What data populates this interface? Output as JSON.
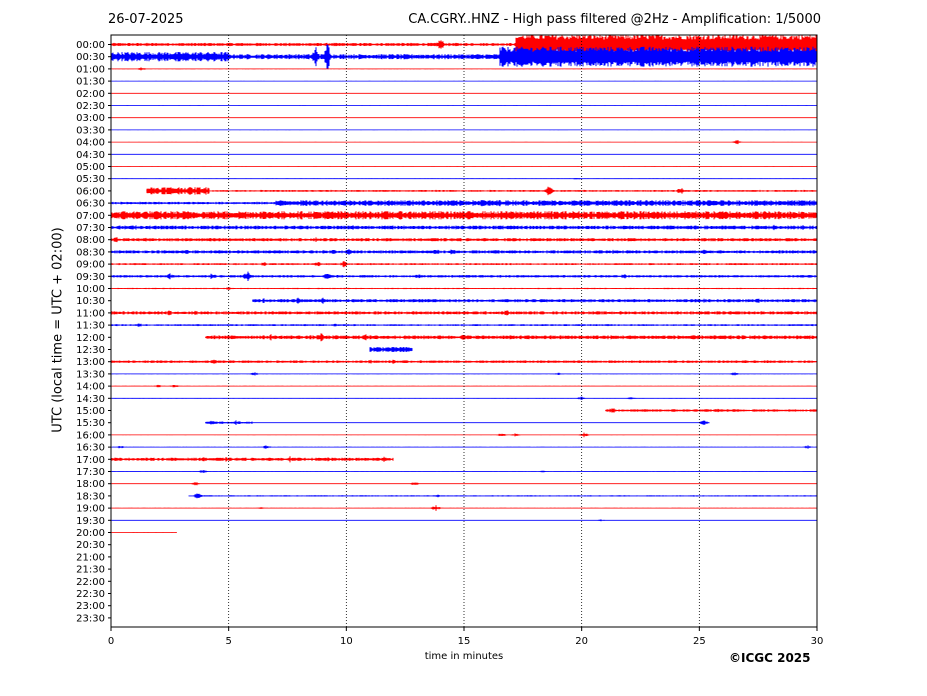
{
  "header": {
    "date": "26-07-2025",
    "title": "CA.CGRY..HNZ - High pass filtered @2Hz - Amplification: 1/5000"
  },
  "footer": {
    "credit": "©ICGC 2025"
  },
  "colors": {
    "trace_red": "#ff0000",
    "trace_blue": "#0000ff",
    "grid": "#000000",
    "background": "#ffffff"
  },
  "chart_data": {
    "type": "line",
    "title": "CA.CGRY..HNZ - High pass filtered @2Hz - Amplification: 1/5000",
    "xlabel": "time in minutes",
    "ylabel": "UTC (local time = UTC + 02:00)",
    "xlim": [
      0,
      30
    ],
    "xticks": [
      "0",
      "5",
      "10",
      "15",
      "20",
      "25",
      "30"
    ],
    "grid": "vertical dotted lines at 5-minute intervals",
    "rows": [
      {
        "label": "00:00",
        "color": "red",
        "activity": [
          [
            0.0,
            17.2,
            0.5
          ],
          [
            17.2,
            30,
            2.5
          ]
        ],
        "events": [
          [
            14.0,
            1.8
          ],
          [
            18.6,
            2.0
          ],
          [
            20.0,
            3.2
          ],
          [
            21.3,
            2.0
          ],
          [
            25.7,
            2.5
          ]
        ]
      },
      {
        "label": "00:30",
        "color": "blue",
        "activity": [
          [
            0.0,
            5.0,
            1.5
          ],
          [
            5.0,
            16.5,
            0.8
          ],
          [
            16.5,
            30,
            2.5
          ]
        ],
        "events": [
          [
            8.7,
            2.8
          ],
          [
            9.2,
            3.5
          ],
          [
            17.7,
            2.0
          ],
          [
            18.9,
            3.0
          ],
          [
            22.4,
            2.5
          ],
          [
            25.7,
            3.0
          ],
          [
            27.9,
            1.6
          ]
        ]
      },
      {
        "label": "01:00",
        "color": "red",
        "activity": [
          [
            0,
            30,
            0.1
          ]
        ],
        "events": [
          [
            1.3,
            0.6
          ]
        ]
      },
      {
        "label": "01:30",
        "color": "blue",
        "activity": [
          [
            0,
            30,
            0.05
          ]
        ],
        "events": []
      },
      {
        "label": "02:00",
        "color": "red",
        "activity": [
          [
            0,
            30,
            0.05
          ]
        ],
        "events": []
      },
      {
        "label": "02:30",
        "color": "blue",
        "activity": [
          [
            0,
            30,
            0.05
          ]
        ],
        "events": []
      },
      {
        "label": "03:00",
        "color": "red",
        "activity": [
          [
            0,
            30,
            0.05
          ]
        ],
        "events": []
      },
      {
        "label": "03:30",
        "color": "blue",
        "activity": [
          [
            0,
            30,
            0.05
          ]
        ],
        "events": []
      },
      {
        "label": "04:00",
        "color": "red",
        "activity": [
          [
            0,
            30,
            0.05
          ]
        ],
        "events": [
          [
            26.6,
            0.8
          ]
        ]
      },
      {
        "label": "04:30",
        "color": "blue",
        "activity": [
          [
            0,
            30,
            0.05
          ]
        ],
        "events": []
      },
      {
        "label": "05:00",
        "color": "red",
        "activity": [
          [
            0,
            30,
            0.05
          ]
        ],
        "events": []
      },
      {
        "label": "05:30",
        "color": "blue",
        "activity": [
          [
            0,
            30,
            0.1
          ]
        ],
        "events": [
          [
            19.8,
            0.4
          ]
        ]
      },
      {
        "label": "06:00",
        "color": "red",
        "activity": [
          [
            1.5,
            4.2,
            1.2
          ],
          [
            4.2,
            30,
            0.3
          ]
        ],
        "events": [
          [
            2.8,
            1.0
          ],
          [
            3.8,
            1.0
          ],
          [
            18.6,
            1.5
          ],
          [
            24.2,
            1.2
          ]
        ]
      },
      {
        "label": "06:30",
        "color": "blue",
        "activity": [
          [
            0,
            7,
            0.4
          ],
          [
            7,
            30,
            0.9
          ]
        ],
        "events": [
          [
            12.4,
            1.0
          ],
          [
            15.8,
            1.3
          ],
          [
            16.5,
            1.2
          ],
          [
            29.4,
            0.6
          ]
        ]
      },
      {
        "label": "07:00",
        "color": "red",
        "activity": [
          [
            0,
            30,
            1.3
          ]
        ],
        "events": [
          [
            1.5,
            1.0
          ],
          [
            2.9,
            1.0
          ],
          [
            7.8,
            1.2
          ],
          [
            15.6,
            1.3
          ],
          [
            21.2,
            1.0
          ],
          [
            27.0,
            1.2
          ]
        ]
      },
      {
        "label": "07:30",
        "color": "blue",
        "activity": [
          [
            0,
            30,
            0.6
          ]
        ],
        "events": [
          [
            1.0,
            1.0
          ],
          [
            10.3,
            0.8
          ],
          [
            28.2,
            1.0
          ],
          [
            29.4,
            1.0
          ]
        ]
      },
      {
        "label": "08:00",
        "color": "red",
        "activity": [
          [
            0,
            30,
            0.5
          ]
        ],
        "events": [
          [
            0.2,
            1.0
          ],
          [
            1.5,
            0.8
          ],
          [
            8.7,
            0.8
          ]
        ]
      },
      {
        "label": "08:30",
        "color": "blue",
        "activity": [
          [
            0,
            30,
            0.5
          ]
        ],
        "events": [
          [
            3.2,
            1.0
          ],
          [
            7.2,
            0.8
          ],
          [
            9.5,
            1.0
          ],
          [
            10.1,
            1.0
          ],
          [
            13.8,
            1.0
          ],
          [
            14.5,
            1.0
          ],
          [
            21.4,
            1.0
          ],
          [
            25.2,
            0.8
          ]
        ]
      },
      {
        "label": "09:00",
        "color": "red",
        "activity": [
          [
            0,
            30,
            0.3
          ]
        ],
        "events": [
          [
            6.5,
            0.8
          ],
          [
            8.8,
            0.8
          ],
          [
            9.9,
            1.0
          ]
        ]
      },
      {
        "label": "09:30",
        "color": "blue",
        "activity": [
          [
            0,
            30,
            0.4
          ]
        ],
        "events": [
          [
            2.5,
            1.0
          ],
          [
            4.3,
            1.2
          ],
          [
            5.8,
            1.6
          ],
          [
            9.2,
            1.2
          ],
          [
            13.1,
            1.0
          ],
          [
            21.8,
            0.8
          ]
        ]
      },
      {
        "label": "10:00",
        "color": "red",
        "activity": [
          [
            0,
            30,
            0.2
          ]
        ],
        "events": [
          [
            5.0,
            0.6
          ]
        ]
      },
      {
        "label": "10:30",
        "color": "blue",
        "activity": [
          [
            6,
            30,
            0.5
          ]
        ],
        "events": [
          [
            6.5,
            0.8
          ],
          [
            8.0,
            1.2
          ],
          [
            9.0,
            1.0
          ],
          [
            25.2,
            0.8
          ],
          [
            27.5,
            0.8
          ]
        ]
      },
      {
        "label": "11:00",
        "color": "red",
        "activity": [
          [
            0,
            30,
            0.5
          ]
        ],
        "events": [
          [
            2.5,
            1.0
          ],
          [
            3.6,
            0.8
          ],
          [
            16.8,
            1.0
          ],
          [
            14.1,
            0.7
          ]
        ]
      },
      {
        "label": "11:30",
        "color": "blue",
        "activity": [
          [
            0,
            30,
            0.3
          ]
        ],
        "events": [
          [
            1.2,
            0.6
          ],
          [
            9.5,
            0.6
          ]
        ]
      },
      {
        "label": "12:00",
        "color": "red",
        "activity": [
          [
            4,
            30,
            0.6
          ]
        ],
        "events": [
          [
            6.8,
            1.0
          ],
          [
            8.9,
            1.5
          ],
          [
            10.8,
            1.5
          ],
          [
            15.0,
            1.0
          ]
        ]
      },
      {
        "label": "12:30",
        "color": "blue",
        "activity": [
          [
            11,
            12.8,
            0.8
          ]
        ],
        "events": [
          [
            11.6,
            1.0
          ],
          [
            12.3,
            1.0
          ]
        ]
      },
      {
        "label": "13:00",
        "color": "red",
        "activity": [
          [
            0,
            30,
            0.4
          ]
        ],
        "events": [
          [
            4.4,
            0.8
          ],
          [
            11.0,
            0.8
          ],
          [
            12.0,
            0.8
          ]
        ]
      },
      {
        "label": "13:30",
        "color": "blue",
        "activity": [
          [
            0,
            30,
            0.1
          ]
        ],
        "events": [
          [
            6.1,
            0.6
          ],
          [
            19.0,
            0.4
          ],
          [
            26.5,
            0.6
          ]
        ]
      },
      {
        "label": "14:00",
        "color": "red",
        "activity": [
          [
            0,
            30,
            0.1
          ]
        ],
        "events": [
          [
            2.0,
            0.5
          ],
          [
            2.7,
            0.5
          ]
        ]
      },
      {
        "label": "14:30",
        "color": "blue",
        "activity": [
          [
            0,
            30,
            0.1
          ]
        ],
        "events": [
          [
            20.0,
            0.6
          ],
          [
            22.1,
            0.4
          ]
        ]
      },
      {
        "label": "15:00",
        "color": "red",
        "activity": [
          [
            21,
            30,
            0.4
          ]
        ],
        "events": [
          [
            21.3,
            1.0
          ],
          [
            25.8,
            0.8
          ],
          [
            27.4,
            0.6
          ]
        ]
      },
      {
        "label": "15:30",
        "color": "blue",
        "activity": [
          [
            4,
            6,
            0.4
          ]
        ],
        "events": [
          [
            4.3,
            1.0
          ],
          [
            5.3,
            0.8
          ],
          [
            25.2,
            1.0
          ]
        ]
      },
      {
        "label": "16:00",
        "color": "red",
        "activity": [
          [
            0,
            30,
            0.05
          ]
        ],
        "events": [
          [
            16.6,
            0.6
          ],
          [
            17.2,
            0.6
          ],
          [
            20.1,
            0.8
          ]
        ]
      },
      {
        "label": "16:30",
        "color": "blue",
        "activity": [
          [
            0,
            30,
            0.1
          ]
        ],
        "events": [
          [
            0.4,
            0.5
          ],
          [
            6.6,
            0.6
          ],
          [
            29.6,
            0.6
          ]
        ]
      },
      {
        "label": "17:00",
        "color": "red",
        "activity": [
          [
            0,
            12,
            0.5
          ]
        ],
        "events": [
          [
            0.1,
            0.8
          ],
          [
            3.9,
            1.0
          ],
          [
            4.9,
            0.8
          ],
          [
            7.6,
            1.0
          ],
          [
            9.2,
            0.8
          ],
          [
            11.6,
            1.2
          ]
        ]
      },
      {
        "label": "17:30",
        "color": "blue",
        "activity": [
          [
            0,
            30,
            0.1
          ]
        ],
        "events": [
          [
            3.9,
            0.6
          ],
          [
            18.4,
            0.4
          ]
        ]
      },
      {
        "label": "18:00",
        "color": "red",
        "activity": [
          [
            0,
            30,
            0.05
          ]
        ],
        "events": [
          [
            3.6,
            0.6
          ],
          [
            12.9,
            0.6
          ]
        ]
      },
      {
        "label": "18:30",
        "color": "blue",
        "activity": [
          [
            3.3,
            30,
            0.2
          ]
        ],
        "events": [
          [
            3.7,
            1.0
          ],
          [
            13.9,
            0.5
          ],
          [
            24.8,
            0.4
          ]
        ]
      },
      {
        "label": "19:00",
        "color": "red",
        "activity": [
          [
            0,
            30,
            0.1
          ]
        ],
        "events": [
          [
            6.4,
            0.4
          ],
          [
            13.8,
            1.0
          ]
        ]
      },
      {
        "label": "19:30",
        "color": "blue",
        "activity": [
          [
            0,
            30,
            0.05
          ]
        ],
        "events": [
          [
            20.8,
            0.3
          ]
        ]
      },
      {
        "label": "20:00",
        "color": "red",
        "activity": [
          [
            0,
            2.8,
            0.05
          ]
        ],
        "events": []
      },
      {
        "label": "20:30",
        "color": "none",
        "activity": [],
        "events": []
      },
      {
        "label": "21:00",
        "color": "none",
        "activity": [],
        "events": []
      },
      {
        "label": "21:30",
        "color": "none",
        "activity": [],
        "events": []
      },
      {
        "label": "22:00",
        "color": "none",
        "activity": [],
        "events": []
      },
      {
        "label": "22:30",
        "color": "none",
        "activity": [],
        "events": []
      },
      {
        "label": "23:00",
        "color": "none",
        "activity": [],
        "events": []
      },
      {
        "label": "23:30",
        "color": "none",
        "activity": [],
        "events": []
      }
    ]
  }
}
